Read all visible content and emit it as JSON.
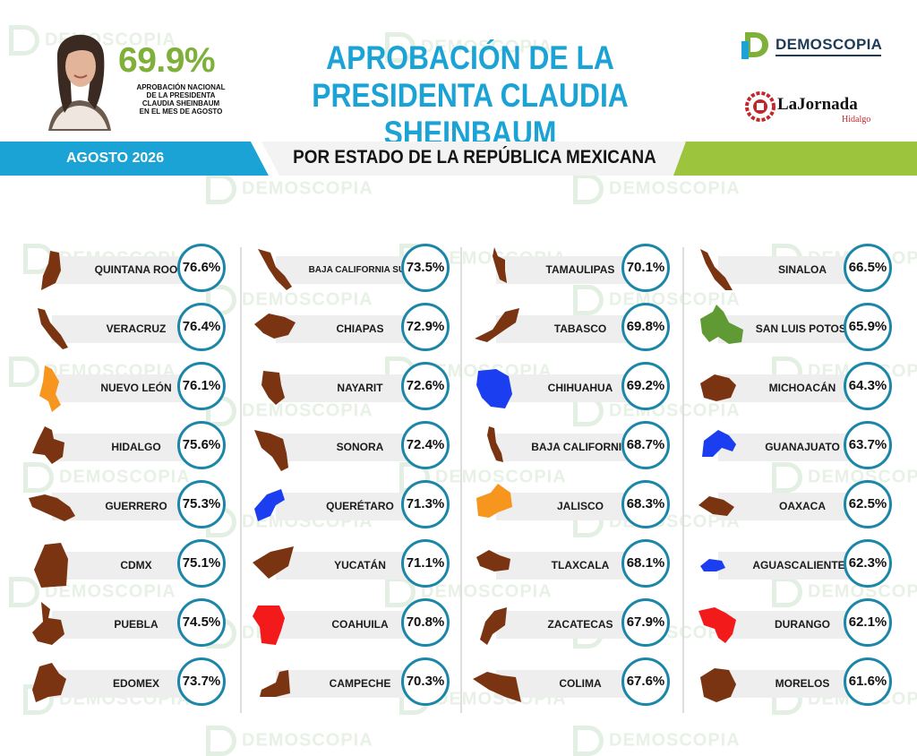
{
  "header": {
    "national_value": "69.9%",
    "national_caption": [
      "APROBACIÓN NACIONAL",
      "DE LA PRESIDENTA",
      "CLAUDIA SHEINBAUM",
      "EN EL MES DE AGOSTO"
    ],
    "title_line1": "APROBACIÓN DE LA",
    "title_line2": "PRESIDENTA CLAUDIA SHEINBAUM",
    "logo_demoscopia": "DEMOSCOPIA",
    "logo_jornada": "LaJornada",
    "logo_jornada_sub": "Hidalgo"
  },
  "banner": {
    "date": "AGOSTO 2026",
    "subtitle": "POR ESTADO DE LA REPÚBLICA MEXICANA"
  },
  "watermark": "DEMOSCOPIA",
  "colors": {
    "title_blue": "#1aa3d4",
    "accent_green": "#7fb13a",
    "banner_blue": "#1aa3d4",
    "banner_green": "#9cc43c",
    "circle_border": "#1c86a8",
    "state_brown": "#7a3412",
    "state_orange": "#f7961e",
    "state_blue": "#1b3ff0",
    "state_red": "#f21a1a",
    "state_green": "#5f9a34"
  },
  "chart_data": {
    "type": "table",
    "title": "APROBACIÓN DE LA PRESIDENTA CLAUDIA SHEINBAUM",
    "subtitle": "POR ESTADO DE LA REPÚBLICA MEXICANA",
    "national_approval": 69.9,
    "columns": [
      [
        {
          "state": "QUINTANA ROO",
          "value": "76.6%",
          "color": "#7a3412"
        },
        {
          "state": "VERACRUZ",
          "value": "76.4%",
          "color": "#7a3412"
        },
        {
          "state": "NUEVO LEÓN",
          "value": "76.1%",
          "color": "#f7961e"
        },
        {
          "state": "HIDALGO",
          "value": "75.6%",
          "color": "#7a3412"
        },
        {
          "state": "GUERRERO",
          "value": "75.3%",
          "color": "#7a3412"
        },
        {
          "state": "CDMX",
          "value": "75.1%",
          "color": "#7a3412"
        },
        {
          "state": "PUEBLA",
          "value": "74.5%",
          "color": "#7a3412"
        },
        {
          "state": "EDOMEX",
          "value": "73.7%",
          "color": "#7a3412"
        }
      ],
      [
        {
          "state": "BAJA CALIFORNIA SUR",
          "value": "73.5%",
          "color": "#7a3412"
        },
        {
          "state": "CHIAPAS",
          "value": "72.9%",
          "color": "#7a3412"
        },
        {
          "state": "NAYARIT",
          "value": "72.6%",
          "color": "#7a3412"
        },
        {
          "state": "SONORA",
          "value": "72.4%",
          "color": "#7a3412"
        },
        {
          "state": "QUERÉTARO",
          "value": "71.3%",
          "color": "#1b3ff0"
        },
        {
          "state": "YUCATÁN",
          "value": "71.1%",
          "color": "#7a3412"
        },
        {
          "state": "COAHUILA",
          "value": "70.8%",
          "color": "#f21a1a"
        },
        {
          "state": "CAMPECHE",
          "value": "70.3%",
          "color": "#7a3412"
        }
      ],
      [
        {
          "state": "TAMAULIPAS",
          "value": "70.1%",
          "color": "#7a3412"
        },
        {
          "state": "TABASCO",
          "value": "69.8%",
          "color": "#7a3412"
        },
        {
          "state": "CHIHUAHUA",
          "value": "69.2%",
          "color": "#1b3ff0"
        },
        {
          "state": "BAJA CALIFORNIA",
          "value": "68.7%",
          "color": "#7a3412"
        },
        {
          "state": "JALISCO",
          "value": "68.3%",
          "color": "#f7961e"
        },
        {
          "state": "TLAXCALA",
          "value": "68.1%",
          "color": "#7a3412"
        },
        {
          "state": "ZACATECAS",
          "value": "67.9%",
          "color": "#7a3412"
        },
        {
          "state": "COLIMA",
          "value": "67.6%",
          "color": "#7a3412"
        }
      ],
      [
        {
          "state": "SINALOA",
          "value": "66.5%",
          "color": "#7a3412"
        },
        {
          "state": "SAN LUIS POTOSÍ",
          "value": "65.9%",
          "color": "#5f9a34"
        },
        {
          "state": "MICHOACÁN",
          "value": "64.3%",
          "color": "#7a3412"
        },
        {
          "state": "GUANAJUATO",
          "value": "63.7%",
          "color": "#1b3ff0"
        },
        {
          "state": "OAXACA",
          "value": "62.5%",
          "color": "#7a3412"
        },
        {
          "state": "AGUASCALIENTES",
          "value": "62.3%",
          "color": "#1b3ff0"
        },
        {
          "state": "DURANGO",
          "value": "62.1%",
          "color": "#f21a1a"
        },
        {
          "state": "MORELOS",
          "value": "61.6%",
          "color": "#7a3412"
        }
      ]
    ]
  }
}
